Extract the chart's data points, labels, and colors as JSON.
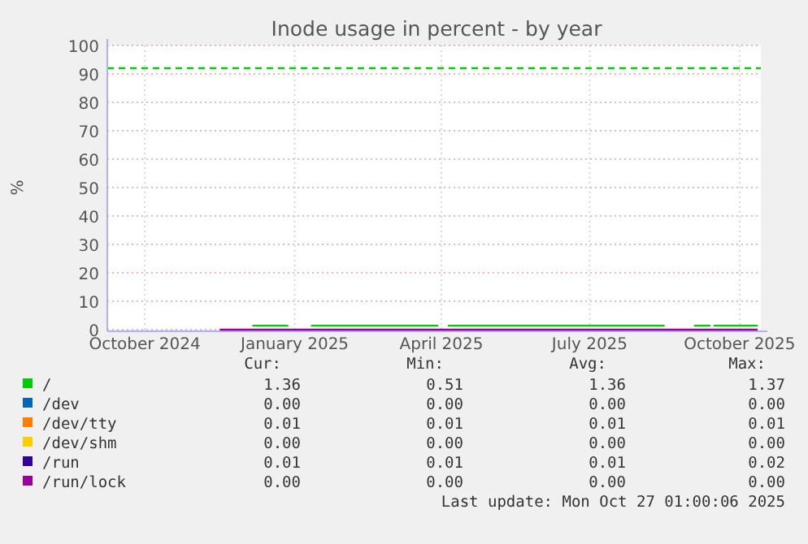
{
  "chart_data": {
    "type": "line",
    "title": "Inode usage in percent - by year",
    "ylabel": "%",
    "xlim": [
      "2024-09-23",
      "2025-10-29"
    ],
    "xticks": [
      {
        "value": "2024-10-16",
        "label": "October 2024"
      },
      {
        "value": "2025-01-16",
        "label": "January 2025"
      },
      {
        "value": "2025-04-16",
        "label": "April 2025"
      },
      {
        "value": "2025-07-16",
        "label": "July 2025"
      },
      {
        "value": "2025-10-16",
        "label": "October 2025"
      }
    ],
    "ylim": [
      0,
      100
    ],
    "yticks": [
      0,
      10,
      20,
      30,
      40,
      50,
      60,
      70,
      80,
      90,
      100
    ],
    "grid": true,
    "legend": "bottom left",
    "line_style": "solid",
    "ref_lines": [
      {
        "axis": "y",
        "value": 92,
        "label": null,
        "color": "#00cc00",
        "line_style": "dashed"
      }
    ],
    "series": [
      {
        "name": "/",
        "color": "#00cc00",
        "x": [
          "2024-12-21",
          "2025-01-12",
          "2025-01-19",
          "2025-01-26",
          "2025-04-14",
          "2025-04-17",
          "2025-04-20",
          "2025-08-31",
          "2025-09-08",
          "2025-09-18",
          "2025-09-28",
          "2025-09-29",
          "2025-09-30",
          "2025-10-27"
        ],
        "values": [
          1.4,
          1.4,
          null,
          1.4,
          1.4,
          null,
          1.4,
          1.4,
          null,
          1.4,
          1.4,
          null,
          1.4,
          1.4
        ]
      },
      {
        "name": "/dev",
        "color": "#0066b3"
      },
      {
        "name": "/dev/tty",
        "color": "#ff8000"
      },
      {
        "name": "/dev/shm",
        "color": "#ffcc00"
      },
      {
        "name": "/run",
        "color": "#330099"
      },
      {
        "name": "/run/lock",
        "color": "#990099",
        "x": [
          "2024-12-01",
          "2025-10-27"
        ],
        "values": [
          0,
          0
        ]
      }
    ],
    "annotations": [
      "Cur:",
      "Min:",
      "Avg:",
      "Max:",
      "1.36",
      "0.51",
      "1.36",
      "1.37",
      "0.00",
      "0.00",
      "0.00",
      "0.00",
      "0.01",
      "0.01",
      "0.01",
      "0.01",
      "0.00",
      "0.00",
      "0.00",
      "0.00",
      "0.01",
      "0.01",
      "0.01",
      "0.02",
      "0.00",
      "0.00",
      "0.00",
      "0.00",
      "Last update: Mon Oct 27 01:00:06 2025"
    ]
  }
}
